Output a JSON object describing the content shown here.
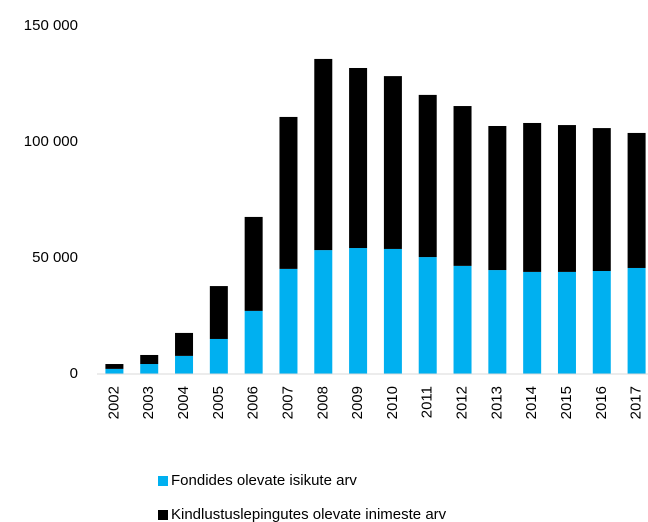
{
  "chart_data": {
    "type": "stacked_bar",
    "categories": [
      "2002",
      "2003",
      "2004",
      "2005",
      "2006",
      "2007",
      "2008",
      "2009",
      "2010",
      "2011",
      "2012",
      "2013",
      "2014",
      "2015",
      "2016",
      "2017"
    ],
    "series": [
      {
        "name": "Fondides olevate isikute arv",
        "color": "#00b0f0",
        "values": [
          2200,
          4300,
          7800,
          15100,
          27200,
          45300,
          53400,
          54300,
          53900,
          50400,
          46600,
          44800,
          44000,
          44000,
          44400,
          45700
        ]
      },
      {
        "name": "Kindlustuslepingutes olevate inimeste arv",
        "color": "#000000",
        "values": [
          2100,
          3900,
          9900,
          22800,
          40500,
          65500,
          82400,
          77600,
          74500,
          69900,
          68900,
          62100,
          64200,
          63300,
          61600,
          58200
        ]
      }
    ],
    "ylim": [
      0,
      150000
    ],
    "yticks": [
      0,
      {
        "value": 50000,
        "label": "50 000"
      },
      {
        "value": 100000,
        "label": "100 000"
      },
      {
        "value": 150000,
        "label": "150 000"
      }
    ],
    "grid": false
  }
}
